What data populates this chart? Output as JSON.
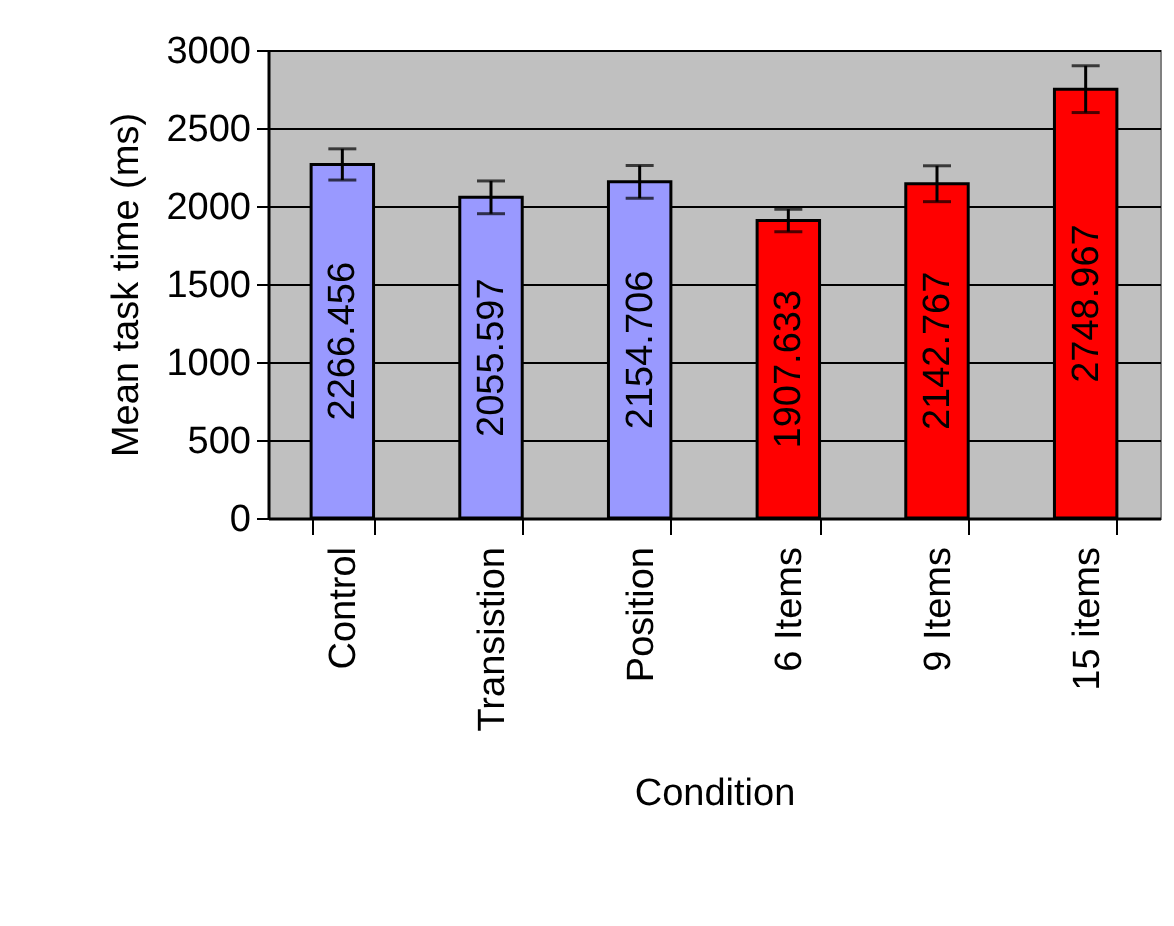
{
  "chart_data": {
    "type": "bar",
    "xlabel": "Condition",
    "ylabel": "Mean task time (ms)",
    "categories": [
      "Control",
      "Transistion",
      "Position",
      "6 Items",
      "9 Items",
      "15 items"
    ],
    "values": [
      2266.456,
      2055.597,
      2154.706,
      1907.633,
      2142.767,
      2748.967
    ],
    "colors": [
      "#9999ff",
      "#9999ff",
      "#9999ff",
      "#ff0000",
      "#ff0000",
      "#ff0000"
    ],
    "errors": [
      100,
      105,
      105,
      72,
      115,
      150
    ],
    "ylim": [
      0,
      3000
    ],
    "yticks": [
      0,
      500,
      1000,
      1500,
      2000,
      2500,
      3000
    ],
    "grid": "y",
    "data_labels": true
  }
}
